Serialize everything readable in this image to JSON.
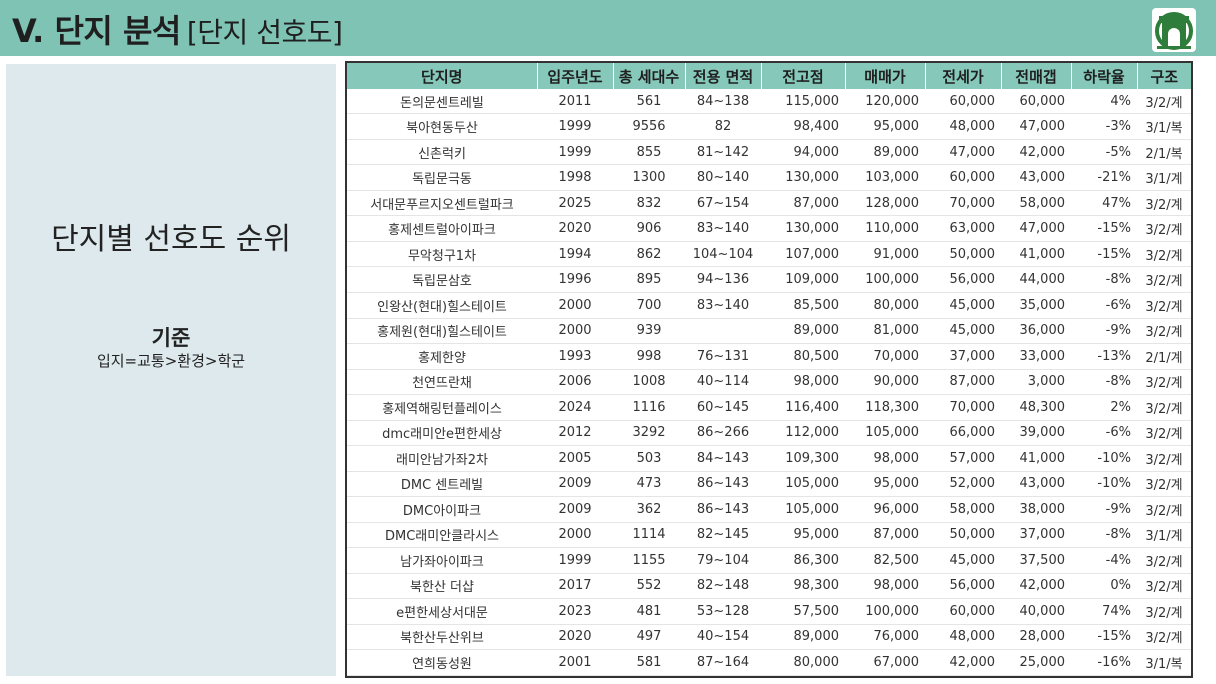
{
  "header": {
    "title": "V. 단지 분석",
    "subtitle": "[단지 선호도]"
  },
  "left_panel": {
    "heading": "단지별 선호도 순위",
    "criteria_title": "기준",
    "criteria_text": "입지=교통>환경>학군"
  },
  "table": {
    "columns": [
      "단지명",
      "입주년도",
      "총 세대수",
      "전용 면적",
      "전고점",
      "매매가",
      "전세가",
      "전매갭",
      "하락율",
      "구조"
    ],
    "rows": [
      [
        "돈의문센트레빌",
        "2011",
        "561",
        "84~138",
        "115,000",
        "120,000",
        "60,000",
        "60,000",
        "4%",
        "3/2/계"
      ],
      [
        "북아현동두산",
        "1999",
        "9556",
        "82",
        "98,400",
        "95,000",
        "48,000",
        "47,000",
        "-3%",
        "3/1/복"
      ],
      [
        "신촌럭키",
        "1999",
        "855",
        "81~142",
        "94,000",
        "89,000",
        "47,000",
        "42,000",
        "-5%",
        "2/1/복"
      ],
      [
        "독립문극동",
        "1998",
        "1300",
        "80~140",
        "130,000",
        "103,000",
        "60,000",
        "43,000",
        "-21%",
        "3/1/계"
      ],
      [
        "서대문푸르지오센트럴파크",
        "2025",
        "832",
        "67~154",
        "87,000",
        "128,000",
        "70,000",
        "58,000",
        "47%",
        "3/2/계"
      ],
      [
        "홍제센트럴아이파크",
        "2020",
        "906",
        "83~140",
        "130,000",
        "110,000",
        "63,000",
        "47,000",
        "-15%",
        "3/2/계"
      ],
      [
        "무악청구1차",
        "1994",
        "862",
        "104~104",
        "107,000",
        "91,000",
        "50,000",
        "41,000",
        "-15%",
        "3/2/계"
      ],
      [
        "독립문삼호",
        "1996",
        "895",
        "94~136",
        "109,000",
        "100,000",
        "56,000",
        "44,000",
        "-8%",
        "3/2/계"
      ],
      [
        "인왕산(현대)힐스테이트",
        "2000",
        "700",
        "83~140",
        "85,500",
        "80,000",
        "45,000",
        "35,000",
        "-6%",
        "3/2/계"
      ],
      [
        "홍제원(현대)힐스테이트",
        "2000",
        "939",
        "",
        "89,000",
        "81,000",
        "45,000",
        "36,000",
        "-9%",
        "3/2/계"
      ],
      [
        "홍제한양",
        "1993",
        "998",
        "76~131",
        "80,500",
        "70,000",
        "37,000",
        "33,000",
        "-13%",
        "2/1/계"
      ],
      [
        "천연뜨란채",
        "2006",
        "1008",
        "40~114",
        "98,000",
        "90,000",
        "87,000",
        "3,000",
        "-8%",
        "3/2/계"
      ],
      [
        "홍제역해링턴플레이스",
        "2024",
        "1116",
        "60~145",
        "116,400",
        "118,300",
        "70,000",
        "48,300",
        "2%",
        "3/2/계"
      ],
      [
        "dmc래미안e편한세상",
        "2012",
        "3292",
        "86~266",
        "112,000",
        "105,000",
        "66,000",
        "39,000",
        "-6%",
        "3/2/계"
      ],
      [
        "래미안남가좌2차",
        "2005",
        "503",
        "84~143",
        "109,300",
        "98,000",
        "57,000",
        "41,000",
        "-10%",
        "3/2/계"
      ],
      [
        "DMC 센트레빌",
        "2009",
        "473",
        "86~143",
        "105,000",
        "95,000",
        "52,000",
        "43,000",
        "-10%",
        "3/2/계"
      ],
      [
        "DMC아이파크",
        "2009",
        "362",
        "86~143",
        "105,000",
        "96,000",
        "58,000",
        "38,000",
        "-9%",
        "3/2/계"
      ],
      [
        "DMC래미안클라시스",
        "2000",
        "1114",
        "82~145",
        "95,000",
        "87,000",
        "50,000",
        "37,000",
        "-8%",
        "3/1/계"
      ],
      [
        "남가좌아이파크",
        "1999",
        "1155",
        "79~104",
        "86,300",
        "82,500",
        "45,000",
        "37,500",
        "-4%",
        "3/2/계"
      ],
      [
        "북한산 더샵",
        "2017",
        "552",
        "82~148",
        "98,300",
        "98,000",
        "56,000",
        "42,000",
        "0%",
        "3/2/계"
      ],
      [
        "e편한세상서대문",
        "2023",
        "481",
        "53~128",
        "57,500",
        "100,000",
        "60,000",
        "40,000",
        "74%",
        "3/2/계"
      ],
      [
        "북한산두산위브",
        "2020",
        "497",
        "40~154",
        "89,000",
        "76,000",
        "48,000",
        "28,000",
        "-15%",
        "3/2/계"
      ],
      [
        "연희동성원",
        "2001",
        "581",
        "87~164",
        "80,000",
        "67,000",
        "42,000",
        "25,000",
        "-16%",
        "3/1/복"
      ]
    ]
  }
}
